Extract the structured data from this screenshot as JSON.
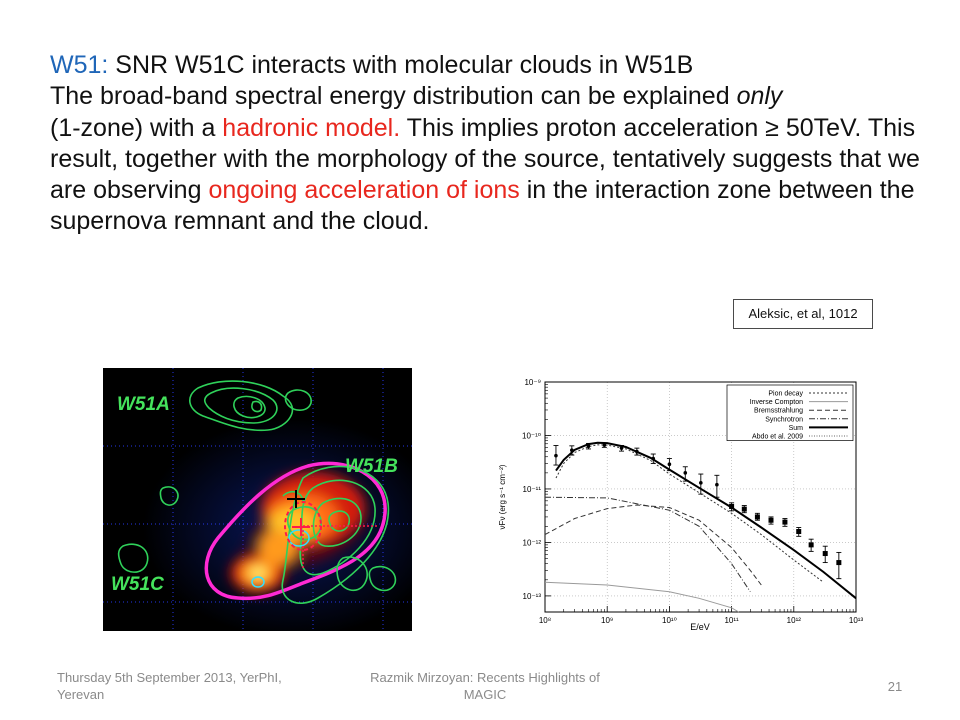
{
  "slide": {
    "title_prefix": "W51:",
    "title_rest": " SNR W51C interacts with molecular clouds in W51B",
    "p1": "The broad-band spectral energy distribution can be explained ",
    "p1_italic": "only",
    "p2": "(1-zone) with a ",
    "p2_red": "hadronic model.",
    "p3": " This implies proton acceleration ≥ 50TeV. This result, together with the morphology of the source, tentatively suggests that we are observing ",
    "p3_red": "ongoing acceleration of ions",
    "p4": " in the interaction zone between the supernova remnant and the cloud.",
    "citation": "Aleksic, et al, 1012"
  },
  "map_figure": {
    "labels": [
      "W51A",
      "W51B",
      "W51C"
    ],
    "colors": {
      "background": "#000000",
      "label": "#45e35c",
      "contour": "#2fd15a",
      "ring": "#ff2ad4",
      "grid": "#3040ff"
    }
  },
  "chart_data": {
    "type": "line",
    "xlabel": "E/eV",
    "ylabel": "νFν (erg s⁻¹ cm⁻²)",
    "xscale": "log",
    "yscale": "log",
    "xlim": [
      100000000.0,
      10000000000000.0
    ],
    "ylim": [
      5e-14,
      1e-09
    ],
    "x_ticks": [
      "10⁸",
      "10⁹",
      "10¹⁰",
      "10¹¹",
      "10¹²",
      "10¹³"
    ],
    "y_ticks": [
      "10⁻⁹",
      "10⁻¹⁰",
      "10⁻¹¹",
      "10⁻¹²",
      "10⁻¹³"
    ],
    "legend": [
      "Pion decay",
      "Inverse Compton",
      "Bremsstrahlung",
      "Synchrotron",
      "Sum",
      "Abdo et al. 2009"
    ],
    "legend_position": "top-right",
    "grid": true,
    "series": [
      {
        "name": "Pion decay",
        "style": "dotted",
        "x": [
          150000000.0,
          200000000.0,
          300000000.0,
          500000000.0,
          700000000.0,
          1000000000.0,
          2000000000.0,
          5000000000.0,
          10000000000.0,
          30000000000.0,
          100000000000.0,
          300000000000.0,
          1000000000000.0,
          3000000000000.0
        ],
        "y": [
          1.6e-11,
          3e-11,
          4.8e-11,
          6.2e-11,
          6.7e-11,
          6.6e-11,
          5.6e-11,
          3.4e-11,
          1.9e-11,
          8.5e-12,
          3.5e-12,
          1.4e-12,
          4.7e-13,
          1.8e-13
        ]
      },
      {
        "name": "Inverse Compton",
        "style": "solid-gray",
        "x": [
          100000000.0,
          1000000000.0,
          10000000000.0,
          30000000000.0,
          100000000000.0,
          130000000000.0
        ],
        "y": [
          1.8e-13,
          1.6e-13,
          1.2e-13,
          9e-14,
          6e-14,
          5e-14
        ]
      },
      {
        "name": "Bremsstrahlung",
        "style": "dashed",
        "x": [
          100000000.0,
          300000000.0,
          1000000000.0,
          3000000000.0,
          10000000000.0,
          30000000000.0,
          100000000000.0,
          200000000000.0,
          300000000000.0
        ],
        "y": [
          1.4e-12,
          2.8e-12,
          4.3e-12,
          5e-12,
          4.5e-12,
          2.6e-12,
          8e-13,
          3e-13,
          1.6e-13
        ]
      },
      {
        "name": "Synchrotron",
        "style": "dashdot",
        "x": [
          100000000.0,
          1000000000.0,
          10000000000.0,
          30000000000.0,
          100000000000.0,
          200000000000.0
        ],
        "y": [
          7e-12,
          6.8e-12,
          4e-12,
          2e-12,
          4e-13,
          1.2e-13
        ]
      },
      {
        "name": "Sum",
        "style": "thick",
        "x": [
          150000000.0,
          200000000.0,
          300000000.0,
          500000000.0,
          700000000.0,
          1000000000.0,
          2000000000.0,
          5000000000.0,
          10000000000.0,
          30000000000.0,
          100000000000.0,
          300000000000.0,
          1000000000000.0,
          3000000000000.0,
          10000000000000.0
        ],
        "y": [
          2.2e-11,
          3.5e-11,
          5.4e-11,
          6.9e-11,
          7.3e-11,
          7.2e-11,
          6.1e-11,
          3.8e-11,
          2.3e-11,
          1.05e-11,
          4.5e-12,
          1.9e-12,
          7.2e-13,
          2.8e-13,
          9e-14
        ]
      }
    ],
    "points": [
      {
        "x": 150000000.0,
        "y": 4.2e-11,
        "lo": 2.8e-11,
        "hi": 6.5e-11
      },
      {
        "x": 270000000.0,
        "y": 5.3e-11,
        "lo": 4.3e-11,
        "hi": 6.4e-11
      },
      {
        "x": 500000000.0,
        "y": 6.3e-11,
        "lo": 5.6e-11,
        "hi": 7.1e-11
      },
      {
        "x": 900000000.0,
        "y": 6.6e-11,
        "lo": 6e-11,
        "hi": 7.2e-11
      },
      {
        "x": 1700000000.0,
        "y": 5.8e-11,
        "lo": 5.1e-11,
        "hi": 6.5e-11
      },
      {
        "x": 3000000000.0,
        "y": 5e-11,
        "lo": 4.3e-11,
        "hi": 5.8e-11
      },
      {
        "x": 5500000000.0,
        "y": 3.7e-11,
        "lo": 3e-11,
        "hi": 4.5e-11
      },
      {
        "x": 10000000000.0,
        "y": 2.9e-11,
        "lo": 2.2e-11,
        "hi": 3.7e-11
      },
      {
        "x": 18000000000.0,
        "y": 2e-11,
        "lo": 1.4e-11,
        "hi": 2.6e-11
      },
      {
        "x": 32000000000.0,
        "y": 1.3e-11,
        "lo": 8e-12,
        "hi": 1.9e-11
      },
      {
        "x": 58000000000.0,
        "y": 1.2e-11,
        "lo": 7e-12,
        "hi": 1.8e-11
      }
    ],
    "magic_points": [
      {
        "x": 100000000000.0,
        "y": 4.7e-12,
        "lo": 3.9e-12,
        "hi": 5.5e-12
      },
      {
        "x": 160000000000.0,
        "y": 4.2e-12,
        "lo": 3.6e-12,
        "hi": 4.9e-12
      },
      {
        "x": 260000000000.0,
        "y": 3e-12,
        "lo": 2.6e-12,
        "hi": 3.5e-12
      },
      {
        "x": 430000000000.0,
        "y": 2.6e-12,
        "lo": 2.2e-12,
        "hi": 3e-12
      },
      {
        "x": 720000000000.0,
        "y": 2.4e-12,
        "lo": 2e-12,
        "hi": 2.8e-12
      },
      {
        "x": 1200000000000.0,
        "y": 1.6e-12,
        "lo": 1.3e-12,
        "hi": 1.9e-12
      },
      {
        "x": 1900000000000.0,
        "y": 9e-13,
        "lo": 6.8e-13,
        "hi": 1.15e-12
      },
      {
        "x": 3200000000000.0,
        "y": 6.2e-13,
        "lo": 4.2e-13,
        "hi": 8.5e-13
      },
      {
        "x": 5300000000000.0,
        "y": 4.2e-13,
        "lo": 2.1e-13,
        "hi": 6.5e-13
      }
    ]
  },
  "footer": {
    "left": "Thursday 5th September 2013, YerPhI, Yerevan",
    "center": "Razmik Mirzoyan: Recents Highlights of MAGIC",
    "page": "21"
  }
}
